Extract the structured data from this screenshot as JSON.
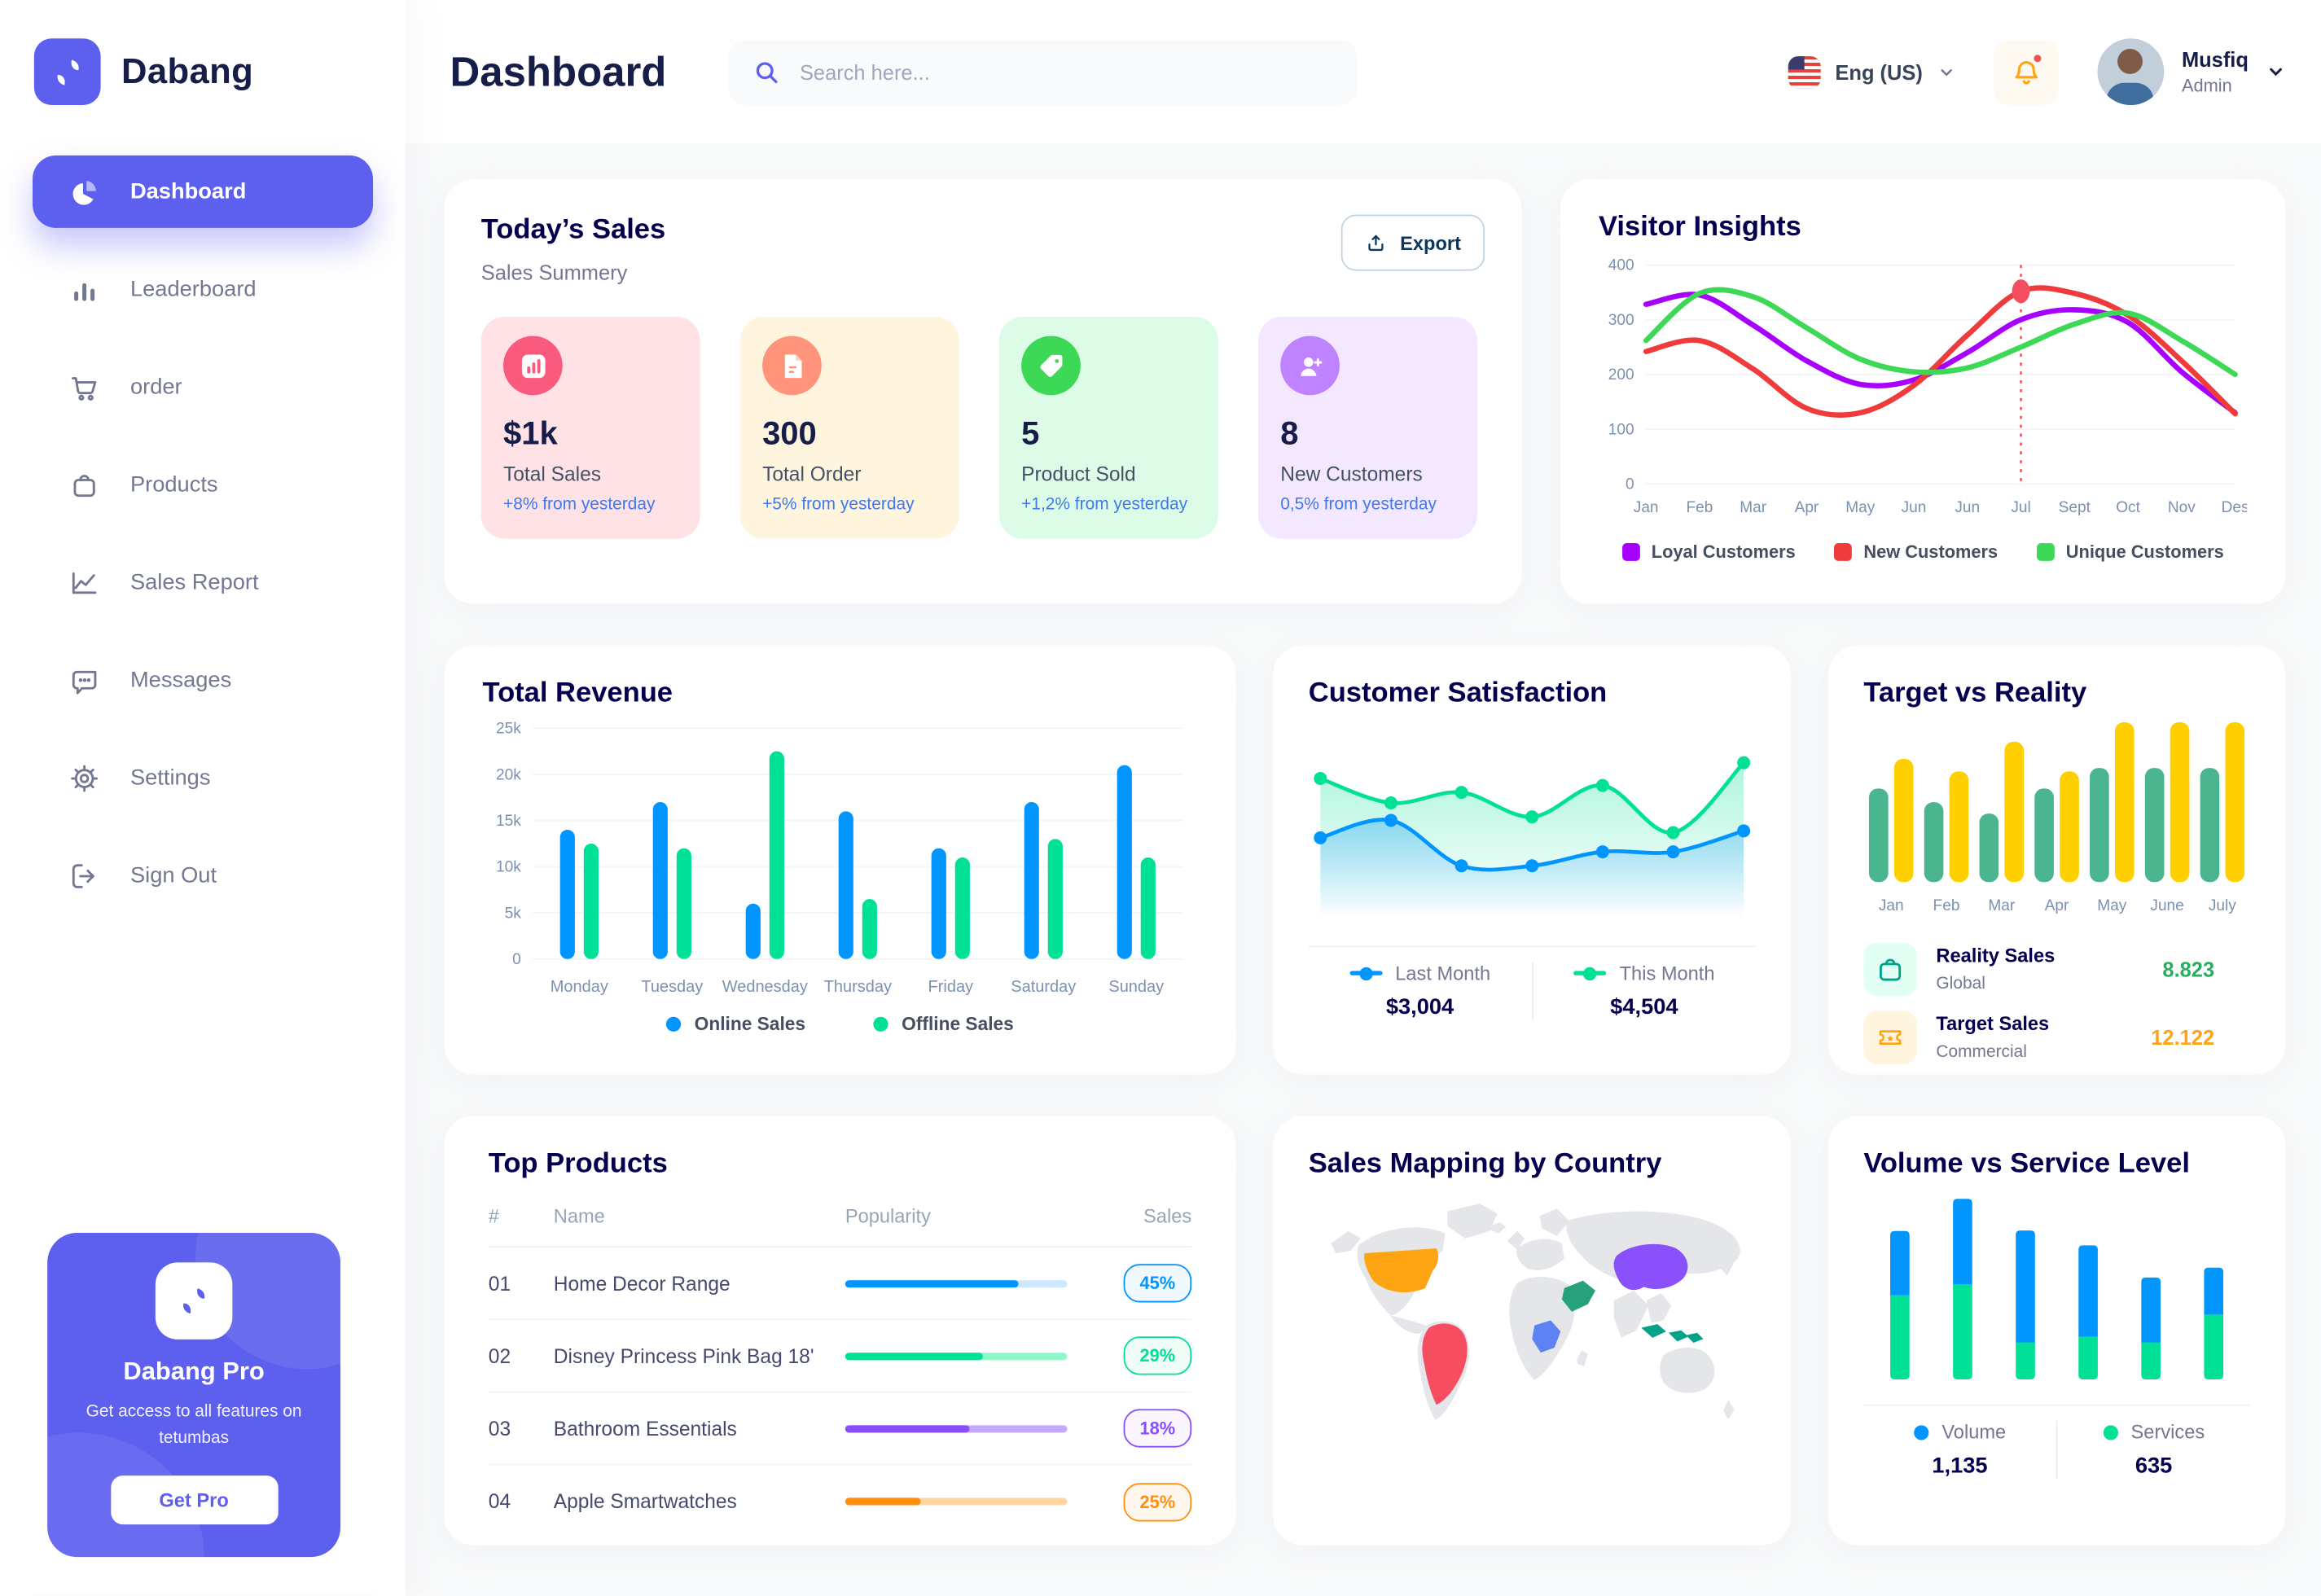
{
  "colors": {
    "accent": "#5D5FEF",
    "title_navy": "#05004E",
    "heading": "#151D48",
    "muted": "#737791",
    "content_bg": "#F9FAFB"
  },
  "app": {
    "brand": "Dabang",
    "page_title": "Dashboard"
  },
  "header": {
    "search_placeholder": "Search here...",
    "language": "Eng (US)",
    "user": {
      "name": "Musfiq",
      "role": "Admin"
    }
  },
  "sidebar": {
    "items": [
      {
        "label": "Dashboard",
        "icon": "pie-chart-icon",
        "active": true
      },
      {
        "label": "Leaderboard",
        "icon": "bar-chart-icon",
        "active": false
      },
      {
        "label": "order",
        "icon": "cart-icon",
        "active": false
      },
      {
        "label": "Products",
        "icon": "bag-icon",
        "active": false
      },
      {
        "label": "Sales Report",
        "icon": "line-chart-icon",
        "active": false
      },
      {
        "label": "Messages",
        "icon": "message-icon",
        "active": false
      },
      {
        "label": "Settings",
        "icon": "gear-icon",
        "active": false
      },
      {
        "label": "Sign Out",
        "icon": "sign-out-icon",
        "active": false
      }
    ],
    "pro_card": {
      "title": "Dabang Pro",
      "subtitle": "Get access to all features on tetumbas",
      "button": "Get Pro"
    }
  },
  "today_sales": {
    "title": "Today’s Sales",
    "subtitle": "Sales Summery",
    "export_label": "Export",
    "cards": [
      {
        "value": "$1k",
        "label": "Total Sales",
        "delta": "+8% from yesterday",
        "bg": "#FFE2E5",
        "icon_bg": "#FA5A7D",
        "icon": "sales-chart-icon"
      },
      {
        "value": "300",
        "label": "Total Order",
        "delta": "+5% from yesterday",
        "bg": "#FFF4DE",
        "icon_bg": "#FF947A",
        "icon": "order-file-icon"
      },
      {
        "value": "5",
        "label": "Product Sold",
        "delta": "+1,2% from yesterday",
        "bg": "#DCFCE7",
        "icon_bg": "#3CD856",
        "icon": "tag-icon"
      },
      {
        "value": "8",
        "label": "New Customers",
        "delta": "0,5% from yesterday",
        "bg": "#F3E8FF",
        "icon_bg": "#BF83FF",
        "icon": "user-plus-icon"
      }
    ]
  },
  "top_products": {
    "title": "Top Products",
    "headers": [
      "#",
      "Name",
      "Popularity",
      "Sales"
    ],
    "rows": [
      {
        "num": "01",
        "name": "Home Decor Range",
        "popularity": 78,
        "sales": "45%",
        "color": "#0095FF",
        "track": "#CDE7FF",
        "badge_bg": "#F0F9FF"
      },
      {
        "num": "02",
        "name": "Disney Princess Pink Bag 18'",
        "popularity": 62,
        "sales": "29%",
        "color": "#00E096",
        "track": "#8CFAC7",
        "badge_bg": "#F0FDF6"
      },
      {
        "num": "03",
        "name": "Bathroom Essentials",
        "popularity": 56,
        "sales": "18%",
        "color": "#884DFF",
        "track": "#C5A8FF",
        "badge_bg": "#FAF5FF"
      },
      {
        "num": "04",
        "name": "Apple Smartwatches",
        "popularity": 34,
        "sales": "25%",
        "color": "#FF8F0D",
        "track": "#FFD5A4",
        "badge_bg": "#FFF7ED"
      }
    ]
  },
  "sales_map": {
    "title": "Sales Mapping by Country",
    "countries": [
      {
        "key": "us",
        "name": "United States",
        "color": "#FFA412"
      },
      {
        "key": "brazil",
        "name": "Brazil",
        "color": "#F64E60"
      },
      {
        "key": "congo",
        "name": "DR Congo",
        "color": "#5E81F4"
      },
      {
        "key": "saudi",
        "name": "Saudi Arabia",
        "color": "#26A17B"
      },
      {
        "key": "china",
        "name": "China",
        "color": "#8950FC"
      },
      {
        "key": "indonesia",
        "name": "Indonesia",
        "color": "#00A389"
      }
    ]
  },
  "chart_data": [
    {
      "id": "visitor_insights",
      "type": "line",
      "title": "Visitor Insights",
      "x": [
        "Jan",
        "Feb",
        "Mar",
        "Apr",
        "May",
        "Jun",
        "Jun",
        "Jul",
        "Sept",
        "Oct",
        "Nov",
        "Des"
      ],
      "ylim": [
        0,
        400
      ],
      "yticks": [
        0,
        100,
        200,
        300,
        400
      ],
      "series": [
        {
          "name": "Loyal Customers",
          "color": "#A700FF",
          "values": [
            328,
            345,
            290,
            225,
            182,
            190,
            240,
            300,
            318,
            295,
            205,
            130
          ]
        },
        {
          "name": "New Customers",
          "color": "#EF3B3B",
          "values": [
            242,
            262,
            210,
            138,
            130,
            180,
            272,
            352,
            348,
            308,
            225,
            128
          ]
        },
        {
          "name": "Unique Customers",
          "color": "#3CD856",
          "values": [
            262,
            348,
            342,
            285,
            228,
            205,
            212,
            250,
            292,
            312,
            262,
            200
          ]
        }
      ],
      "marker": {
        "series": "New Customers",
        "index": 7
      },
      "legend_position": "bottom"
    },
    {
      "id": "total_revenue",
      "type": "bar",
      "title": "Total Revenue",
      "categories": [
        "Monday",
        "Tuesday",
        "Wednesday",
        "Thursday",
        "Friday",
        "Saturday",
        "Sunday"
      ],
      "ylabel": "",
      "xlabel": "",
      "ylim": [
        0,
        25
      ],
      "ytick_labels": [
        "0",
        "5k",
        "10k",
        "15k",
        "20k",
        "25k"
      ],
      "series": [
        {
          "name": "Online Sales",
          "color": "#0095FF",
          "values": [
            14,
            17,
            6,
            16,
            12,
            17,
            21
          ]
        },
        {
          "name": "Offline Sales",
          "color": "#00E096",
          "values": [
            12.5,
            12,
            22.5,
            6.5,
            11,
            13,
            11
          ]
        }
      ],
      "unit": "k",
      "legend_position": "bottom"
    },
    {
      "id": "customer_satisfaction",
      "type": "area",
      "title": "Customer Satisfaction",
      "ylim": [
        0,
        100
      ],
      "series": [
        {
          "name": "Last Month",
          "color": "#0095FF",
          "total": "$3,004",
          "values": [
            44,
            54,
            28,
            28,
            36,
            36,
            48
          ]
        },
        {
          "name": "This Month",
          "color": "#00E096",
          "total": "$4,504",
          "values": [
            78,
            64,
            70,
            56,
            74,
            47,
            87
          ]
        }
      ],
      "legend_position": "bottom"
    },
    {
      "id": "target_vs_reality",
      "type": "bar",
      "title": "Target vs Reality",
      "categories": [
        "Jan",
        "Feb",
        "Mar",
        "Apr",
        "May",
        "June",
        "July"
      ],
      "ylim": [
        0,
        14
      ],
      "series": [
        {
          "name": "Reality Sales",
          "color": "#4AB58E",
          "values": [
            8.2,
            7,
            6,
            8.2,
            10,
            10,
            10
          ]
        },
        {
          "name": "Target Sales",
          "color": "#FFCF00",
          "values": [
            10.8,
            9.7,
            12.3,
            9.7,
            14,
            14,
            14
          ]
        }
      ],
      "legend": [
        {
          "name": "Reality Sales",
          "sub": "Global",
          "value": "8.823",
          "value_color": "#27AE60",
          "icon": "bag-icon",
          "icon_color": "#00A389",
          "icon_bg": "#E2FFF3"
        },
        {
          "name": "Target Sales",
          "sub": "Commercial",
          "value": "12.122",
          "value_color": "#FFA412",
          "icon": "ticket-icon",
          "icon_color": "#FFA412",
          "icon_bg": "#FFF4DE"
        }
      ]
    },
    {
      "id": "volume_vs_service",
      "type": "stacked-bar",
      "title": "Volume vs Service Level",
      "series": [
        {
          "name": "Volume",
          "color": "#0095FF",
          "total": "1,135",
          "values": [
            260,
            345,
            452,
            370,
            262,
            190
          ]
        },
        {
          "name": "Services",
          "color": "#00E096",
          "total": "635",
          "values": [
            340,
            385,
            150,
            172,
            150,
            262
          ]
        }
      ],
      "legend_position": "bottom"
    }
  ]
}
